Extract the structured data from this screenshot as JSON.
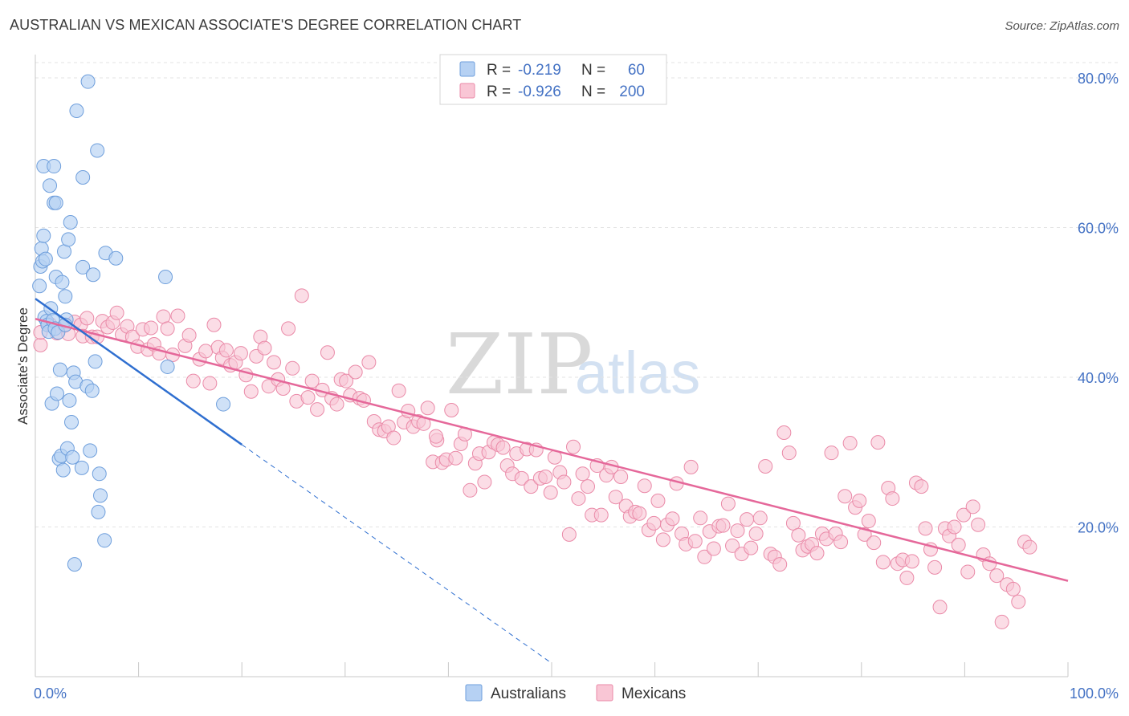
{
  "title": "AUSTRALIAN VS MEXICAN ASSOCIATE'S DEGREE CORRELATION CHART",
  "source": "Source: ZipAtlas.com",
  "watermark": {
    "zip": "ZIP",
    "atlas": "atlas"
  },
  "colors": {
    "australians_fill": "#b6d1f3",
    "australians_stroke": "#6f9fdc",
    "australians_line": "#2f6fd0",
    "mexicans_fill": "#f9c6d5",
    "mexicans_stroke": "#ea8aa8",
    "mexicans_line": "#e5689a",
    "grid": "#e3e3e3",
    "tick_text": "#4472c4"
  },
  "legend_top": {
    "rows": [
      {
        "series": "Australians",
        "r_label": "R =",
        "r_value": "-0.219",
        "n_label": "N =",
        "n_value": "60"
      },
      {
        "series": "Mexicans",
        "r_label": "R =",
        "r_value": "-0.926",
        "n_label": "N =",
        "n_value": "200"
      }
    ]
  },
  "legend_bottom": [
    "Australians",
    "Mexicans"
  ],
  "chart_data": {
    "type": "scatter",
    "title": "AUSTRALIAN VS MEXICAN ASSOCIATE'S DEGREE CORRELATION CHART",
    "xlabel": "",
    "ylabel": "Associate's Degree",
    "xlim": [
      0,
      100
    ],
    "ylim": [
      0,
      82
    ],
    "x_tick_labels": [
      "0.0%",
      "100.0%"
    ],
    "y_ticks": [
      20,
      40,
      60,
      80
    ],
    "y_tick_labels": [
      "20.0%",
      "40.0%",
      "60.0%",
      "80.0%"
    ],
    "grid": true,
    "legend_position": "top-center",
    "series": [
      {
        "name": "Australians",
        "R": -0.219,
        "N": 60,
        "trend": {
          "x0": 0,
          "y0": 50.5,
          "x1": 20,
          "y1": 31.0,
          "dashed_to_x": 50,
          "dashed_to_y": 1.8
        },
        "points": [
          [
            0.4,
            52.2
          ],
          [
            0.5,
            54.8
          ],
          [
            0.6,
            57.2
          ],
          [
            0.7,
            55.5
          ],
          [
            0.8,
            58.9
          ],
          [
            0.8,
            68.2
          ],
          [
            0.9,
            48.0
          ],
          [
            1.0,
            55.8
          ],
          [
            1.1,
            47.5
          ],
          [
            1.2,
            47.0
          ],
          [
            1.3,
            46.1
          ],
          [
            1.4,
            65.6
          ],
          [
            1.5,
            49.2
          ],
          [
            1.6,
            36.5
          ],
          [
            1.7,
            47.6
          ],
          [
            1.8,
            68.2
          ],
          [
            1.8,
            63.3
          ],
          [
            1.9,
            46.5
          ],
          [
            2.0,
            63.3
          ],
          [
            2.0,
            53.4
          ],
          [
            2.1,
            37.8
          ],
          [
            2.2,
            46.0
          ],
          [
            2.3,
            29.1
          ],
          [
            2.4,
            41.0
          ],
          [
            2.5,
            29.5
          ],
          [
            2.6,
            52.7
          ],
          [
            2.7,
            27.6
          ],
          [
            2.8,
            56.8
          ],
          [
            2.9,
            50.8
          ],
          [
            3.0,
            47.7
          ],
          [
            3.1,
            30.5
          ],
          [
            3.2,
            58.4
          ],
          [
            3.3,
            36.9
          ],
          [
            3.4,
            60.7
          ],
          [
            3.5,
            34.0
          ],
          [
            3.6,
            29.3
          ],
          [
            3.7,
            40.6
          ],
          [
            3.8,
            15.0
          ],
          [
            3.9,
            39.4
          ],
          [
            4.0,
            75.6
          ],
          [
            4.5,
            27.9
          ],
          [
            4.6,
            54.7
          ],
          [
            4.6,
            66.7
          ],
          [
            5.0,
            38.8
          ],
          [
            5.1,
            79.5
          ],
          [
            5.3,
            30.2
          ],
          [
            5.5,
            38.2
          ],
          [
            5.6,
            53.7
          ],
          [
            5.8,
            42.1
          ],
          [
            6.0,
            70.3
          ],
          [
            6.1,
            22.0
          ],
          [
            6.2,
            27.1
          ],
          [
            6.3,
            24.2
          ],
          [
            6.7,
            18.2
          ],
          [
            6.8,
            56.6
          ],
          [
            7.8,
            55.9
          ],
          [
            12.6,
            53.4
          ],
          [
            12.8,
            41.4
          ],
          [
            18.2,
            36.4
          ],
          [
            2.9,
            47.0
          ]
        ]
      },
      {
        "name": "Mexicans",
        "R": -0.926,
        "N": 200,
        "trend": {
          "x0": 0,
          "y0": 47.8,
          "x1": 100,
          "y1": 12.8
        },
        "points": [
          [
            0.5,
            44.3
          ],
          [
            0.5,
            46.0
          ],
          [
            1.4,
            47.1
          ],
          [
            2.1,
            45.9
          ],
          [
            2.8,
            46.9
          ],
          [
            3.2,
            45.8
          ],
          [
            3.8,
            47.4
          ],
          [
            4.4,
            47.0
          ],
          [
            4.6,
            45.5
          ],
          [
            5.0,
            47.9
          ],
          [
            5.5,
            45.4
          ],
          [
            6.0,
            45.4
          ],
          [
            6.5,
            47.5
          ],
          [
            7.0,
            46.7
          ],
          [
            7.5,
            47.3
          ],
          [
            7.9,
            48.6
          ],
          [
            8.4,
            45.7
          ],
          [
            8.9,
            46.8
          ],
          [
            9.4,
            45.4
          ],
          [
            9.9,
            44.1
          ],
          [
            10.4,
            46.4
          ],
          [
            10.9,
            43.7
          ],
          [
            11.2,
            46.6
          ],
          [
            11.5,
            44.4
          ],
          [
            12.0,
            43.2
          ],
          [
            12.4,
            48.1
          ],
          [
            12.8,
            46.5
          ],
          [
            13.3,
            43.0
          ],
          [
            13.8,
            48.2
          ],
          [
            14.5,
            44.2
          ],
          [
            14.9,
            45.6
          ],
          [
            15.3,
            39.5
          ],
          [
            15.9,
            42.4
          ],
          [
            16.5,
            43.5
          ],
          [
            16.9,
            39.2
          ],
          [
            17.3,
            47.0
          ],
          [
            17.7,
            44.0
          ],
          [
            18.1,
            42.6
          ],
          [
            18.5,
            43.6
          ],
          [
            18.9,
            41.6
          ],
          [
            19.4,
            42.0
          ],
          [
            19.9,
            43.2
          ],
          [
            20.4,
            40.3
          ],
          [
            20.9,
            38.1
          ],
          [
            21.4,
            42.8
          ],
          [
            21.8,
            45.4
          ],
          [
            22.2,
            43.9
          ],
          [
            22.6,
            38.8
          ],
          [
            23.1,
            42.0
          ],
          [
            23.5,
            39.7
          ],
          [
            24.0,
            38.5
          ],
          [
            24.5,
            46.5
          ],
          [
            24.9,
            41.2
          ],
          [
            25.3,
            36.8
          ],
          [
            25.8,
            50.9
          ],
          [
            26.4,
            37.3
          ],
          [
            26.8,
            39.5
          ],
          [
            27.3,
            35.7
          ],
          [
            27.8,
            38.3
          ],
          [
            28.3,
            43.3
          ],
          [
            28.7,
            37.2
          ],
          [
            29.2,
            36.4
          ],
          [
            29.6,
            39.7
          ],
          [
            30.1,
            39.5
          ],
          [
            30.5,
            37.6
          ],
          [
            31.0,
            40.7
          ],
          [
            31.4,
            37.2
          ],
          [
            31.8,
            36.9
          ],
          [
            32.3,
            42.0
          ],
          [
            32.8,
            34.1
          ],
          [
            33.3,
            33.0
          ],
          [
            33.8,
            32.8
          ],
          [
            34.2,
            33.4
          ],
          [
            34.7,
            31.9
          ],
          [
            35.2,
            38.2
          ],
          [
            35.7,
            34.0
          ],
          [
            36.1,
            35.5
          ],
          [
            36.6,
            33.4
          ],
          [
            37.1,
            34.1
          ],
          [
            37.6,
            33.8
          ],
          [
            38.0,
            35.9
          ],
          [
            38.5,
            28.7
          ],
          [
            38.9,
            31.6
          ],
          [
            39.4,
            28.6
          ],
          [
            39.8,
            29.0
          ],
          [
            40.3,
            35.6
          ],
          [
            40.7,
            29.2
          ],
          [
            41.2,
            31.1
          ],
          [
            41.6,
            32.4
          ],
          [
            42.1,
            24.9
          ],
          [
            42.6,
            28.5
          ],
          [
            43.0,
            29.8
          ],
          [
            43.5,
            26.0
          ],
          [
            43.9,
            30.0
          ],
          [
            44.4,
            31.3
          ],
          [
            44.8,
            31.0
          ],
          [
            45.3,
            30.6
          ],
          [
            45.7,
            28.2
          ],
          [
            46.2,
            27.1
          ],
          [
            46.6,
            29.8
          ],
          [
            47.1,
            26.5
          ],
          [
            47.6,
            30.4
          ],
          [
            48.0,
            25.4
          ],
          [
            48.5,
            30.3
          ],
          [
            48.9,
            26.5
          ],
          [
            49.4,
            26.7
          ],
          [
            49.9,
            24.6
          ],
          [
            50.3,
            29.3
          ],
          [
            50.8,
            27.3
          ],
          [
            51.2,
            26.0
          ],
          [
            51.7,
            19.0
          ],
          [
            52.1,
            30.7
          ],
          [
            52.6,
            23.8
          ],
          [
            53.0,
            27.1
          ],
          [
            53.5,
            25.4
          ],
          [
            53.9,
            21.6
          ],
          [
            54.4,
            28.2
          ],
          [
            54.8,
            21.6
          ],
          [
            55.3,
            26.9
          ],
          [
            55.8,
            28.0
          ],
          [
            56.2,
            24.0
          ],
          [
            56.7,
            26.7
          ],
          [
            57.2,
            22.8
          ],
          [
            57.6,
            21.4
          ],
          [
            58.1,
            22.0
          ],
          [
            58.5,
            21.8
          ],
          [
            59.0,
            25.5
          ],
          [
            59.4,
            19.6
          ],
          [
            59.9,
            20.5
          ],
          [
            60.3,
            23.5
          ],
          [
            60.8,
            18.3
          ],
          [
            61.2,
            20.3
          ],
          [
            61.7,
            21.1
          ],
          [
            62.1,
            25.8
          ],
          [
            62.6,
            19.1
          ],
          [
            63.0,
            17.7
          ],
          [
            63.5,
            28.0
          ],
          [
            63.9,
            18.1
          ],
          [
            64.4,
            21.2
          ],
          [
            64.8,
            16.0
          ],
          [
            65.3,
            19.4
          ],
          [
            65.7,
            17.1
          ],
          [
            66.2,
            20.1
          ],
          [
            66.6,
            20.2
          ],
          [
            67.1,
            23.1
          ],
          [
            67.5,
            17.5
          ],
          [
            68.0,
            19.5
          ],
          [
            68.4,
            16.4
          ],
          [
            68.9,
            21.0
          ],
          [
            69.3,
            17.2
          ],
          [
            69.8,
            19.1
          ],
          [
            70.2,
            21.2
          ],
          [
            70.7,
            28.1
          ],
          [
            71.2,
            16.4
          ],
          [
            71.6,
            16.0
          ],
          [
            72.1,
            15.0
          ],
          [
            72.5,
            32.6
          ],
          [
            73.0,
            29.9
          ],
          [
            73.4,
            20.5
          ],
          [
            73.9,
            18.9
          ],
          [
            74.3,
            16.9
          ],
          [
            74.8,
            17.4
          ],
          [
            75.2,
            17.7
          ],
          [
            75.7,
            16.5
          ],
          [
            76.2,
            19.1
          ],
          [
            76.6,
            18.4
          ],
          [
            77.1,
            29.9
          ],
          [
            77.5,
            19.1
          ],
          [
            78.0,
            18.0
          ],
          [
            78.4,
            24.1
          ],
          [
            78.9,
            31.2
          ],
          [
            79.4,
            22.6
          ],
          [
            79.8,
            23.5
          ],
          [
            80.3,
            19.0
          ],
          [
            80.7,
            20.8
          ],
          [
            81.2,
            17.9
          ],
          [
            81.6,
            31.3
          ],
          [
            82.1,
            15.3
          ],
          [
            82.6,
            25.2
          ],
          [
            83.0,
            23.8
          ],
          [
            83.5,
            15.1
          ],
          [
            84.0,
            15.6
          ],
          [
            84.4,
            13.2
          ],
          [
            84.9,
            15.4
          ],
          [
            85.3,
            25.9
          ],
          [
            85.8,
            25.4
          ],
          [
            86.2,
            19.8
          ],
          [
            86.7,
            17.0
          ],
          [
            87.1,
            14.6
          ],
          [
            87.6,
            9.3
          ],
          [
            88.1,
            19.8
          ],
          [
            88.5,
            18.8
          ],
          [
            89.0,
            20.0
          ],
          [
            89.4,
            17.6
          ],
          [
            89.9,
            21.6
          ],
          [
            90.3,
            14.0
          ],
          [
            90.8,
            22.7
          ],
          [
            91.3,
            20.3
          ],
          [
            91.8,
            16.3
          ],
          [
            92.4,
            15.1
          ],
          [
            93.1,
            13.5
          ],
          [
            93.6,
            7.3
          ],
          [
            94.1,
            12.3
          ],
          [
            94.7,
            11.7
          ],
          [
            95.2,
            10.0
          ],
          [
            95.8,
            18.0
          ],
          [
            96.3,
            17.3
          ],
          [
            38.8,
            32.1
          ]
        ]
      }
    ]
  }
}
